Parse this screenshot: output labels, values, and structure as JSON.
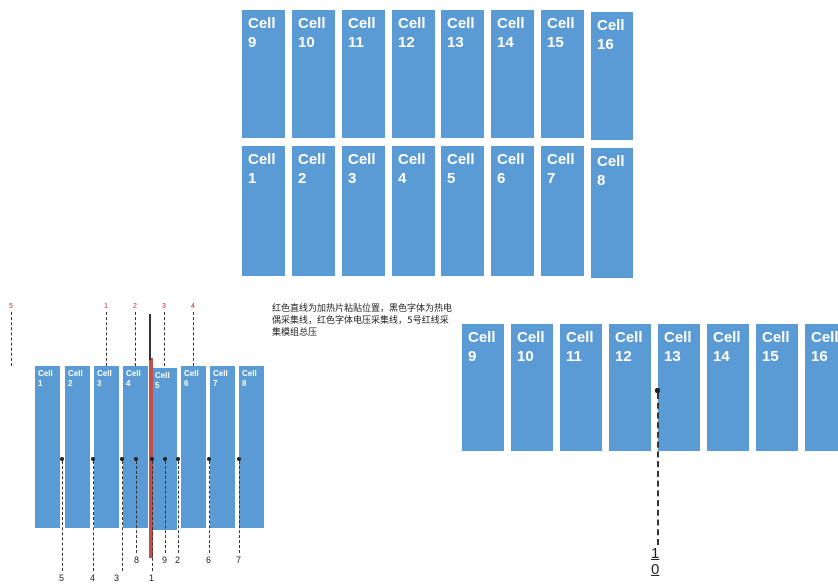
{
  "diagram": {
    "cell_word": "Cell",
    "top_row_upper": [
      "9",
      "10",
      "11",
      "12",
      "13",
      "14",
      "15",
      "16"
    ],
    "top_row_lower": [
      "1",
      "2",
      "3",
      "4",
      "5",
      "6",
      "7",
      "8"
    ],
    "left_cells": [
      "1",
      "2",
      "3",
      "4",
      "5",
      "6",
      "7",
      "8"
    ],
    "right_cells": [
      "9",
      "10",
      "11",
      "12",
      "13",
      "14",
      "15",
      "16"
    ],
    "note": "红色直线为加热片粘贴位置，黑色字体为热电偶采集线，红色字体电压采集线，5号红线采集模组总压",
    "left_bottom_labels": [
      "5",
      "4",
      "3",
      "8",
      "1",
      "9",
      "2",
      "6",
      "7"
    ],
    "left_red_labels": [
      "5",
      "1",
      "2",
      "3",
      "4",
      "5"
    ],
    "right_label": "10",
    "cell_color": "#5b9bd5",
    "heater_color": "#c0504d"
  }
}
